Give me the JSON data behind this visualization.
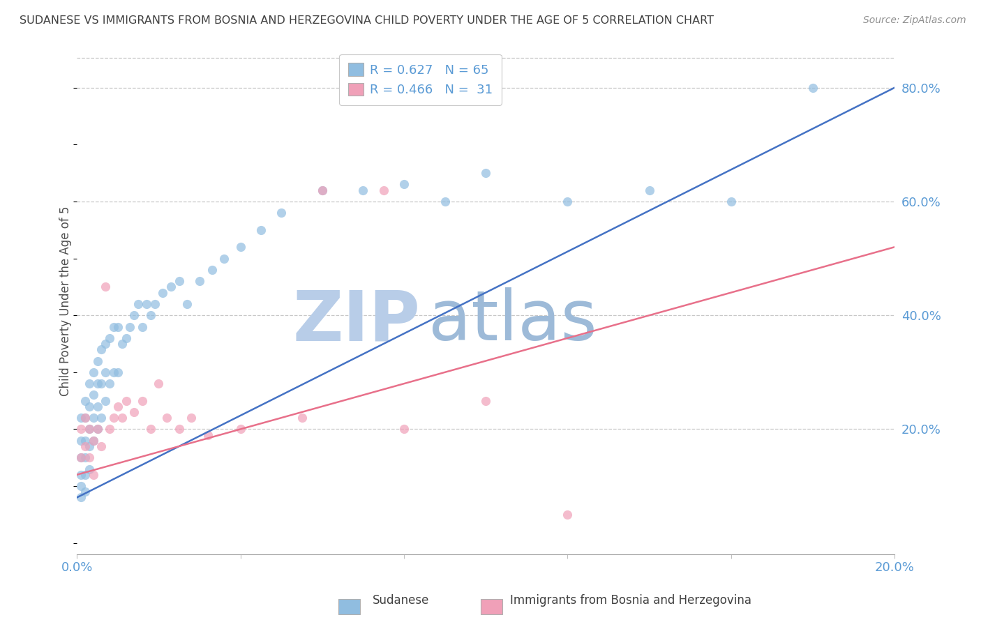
{
  "title": "SUDANESE VS IMMIGRANTS FROM BOSNIA AND HERZEGOVINA CHILD POVERTY UNDER THE AGE OF 5 CORRELATION CHART",
  "source": "Source: ZipAtlas.com",
  "ylabel": "Child Poverty Under the Age of 5",
  "y_ticks": [
    "20.0%",
    "40.0%",
    "60.0%",
    "80.0%"
  ],
  "y_tick_vals": [
    0.2,
    0.4,
    0.6,
    0.8
  ],
  "xlim": [
    0.0,
    0.2
  ],
  "ylim": [
    -0.02,
    0.87
  ],
  "watermark_zip": "ZIP",
  "watermark_atlas": "atlas",
  "legend_R1": "0.627",
  "legend_N1": "65",
  "legend_R2": "0.466",
  "legend_N2": "31",
  "legend_label1": "Sudanese",
  "legend_label2": "Immigrants from Bosnia and Herzegovina",
  "color_blue": "#90BDE0",
  "color_pink": "#F0A0B8",
  "color_blue_line": "#4472C4",
  "color_pink_line": "#E8708A",
  "color_title": "#404040",
  "color_source": "#909090",
  "color_axis": "#5B9BD5",
  "color_watermark_zip": "#B8CDE8",
  "color_watermark_atlas": "#9DBAD8",
  "sudanese_x": [
    0.001,
    0.001,
    0.001,
    0.001,
    0.001,
    0.001,
    0.002,
    0.002,
    0.002,
    0.002,
    0.002,
    0.002,
    0.003,
    0.003,
    0.003,
    0.003,
    0.003,
    0.004,
    0.004,
    0.004,
    0.004,
    0.005,
    0.005,
    0.005,
    0.005,
    0.006,
    0.006,
    0.006,
    0.007,
    0.007,
    0.007,
    0.008,
    0.008,
    0.009,
    0.009,
    0.01,
    0.01,
    0.011,
    0.012,
    0.013,
    0.014,
    0.015,
    0.016,
    0.017,
    0.018,
    0.019,
    0.021,
    0.023,
    0.025,
    0.027,
    0.03,
    0.033,
    0.036,
    0.04,
    0.045,
    0.05,
    0.06,
    0.07,
    0.08,
    0.09,
    0.1,
    0.12,
    0.14,
    0.16,
    0.18
  ],
  "sudanese_y": [
    0.22,
    0.18,
    0.15,
    0.12,
    0.1,
    0.08,
    0.25,
    0.22,
    0.18,
    0.15,
    0.12,
    0.09,
    0.28,
    0.24,
    0.2,
    0.17,
    0.13,
    0.3,
    0.26,
    0.22,
    0.18,
    0.32,
    0.28,
    0.24,
    0.2,
    0.34,
    0.28,
    0.22,
    0.35,
    0.3,
    0.25,
    0.36,
    0.28,
    0.38,
    0.3,
    0.38,
    0.3,
    0.35,
    0.36,
    0.38,
    0.4,
    0.42,
    0.38,
    0.42,
    0.4,
    0.42,
    0.44,
    0.45,
    0.46,
    0.42,
    0.46,
    0.48,
    0.5,
    0.52,
    0.55,
    0.58,
    0.62,
    0.62,
    0.63,
    0.6,
    0.65,
    0.6,
    0.62,
    0.6,
    0.8
  ],
  "bosnia_x": [
    0.001,
    0.001,
    0.002,
    0.002,
    0.003,
    0.003,
    0.004,
    0.004,
    0.005,
    0.006,
    0.007,
    0.008,
    0.009,
    0.01,
    0.011,
    0.012,
    0.014,
    0.016,
    0.018,
    0.02,
    0.022,
    0.025,
    0.028,
    0.032,
    0.04,
    0.055,
    0.06,
    0.075,
    0.08,
    0.1,
    0.12
  ],
  "bosnia_y": [
    0.2,
    0.15,
    0.22,
    0.17,
    0.2,
    0.15,
    0.18,
    0.12,
    0.2,
    0.17,
    0.45,
    0.2,
    0.22,
    0.24,
    0.22,
    0.25,
    0.23,
    0.25,
    0.2,
    0.28,
    0.22,
    0.2,
    0.22,
    0.19,
    0.2,
    0.22,
    0.62,
    0.62,
    0.2,
    0.25,
    0.05
  ],
  "blue_line_x": [
    0.0,
    0.2
  ],
  "blue_line_y": [
    0.08,
    0.8
  ],
  "pink_line_x": [
    0.0,
    0.2
  ],
  "pink_line_y": [
    0.12,
    0.52
  ]
}
